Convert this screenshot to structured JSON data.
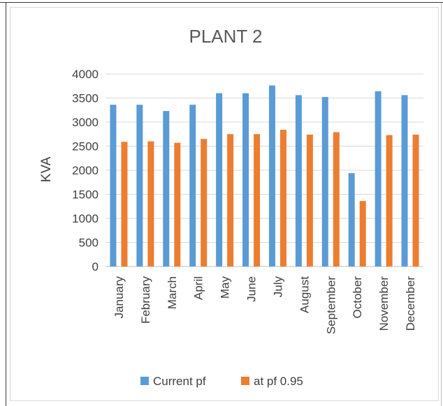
{
  "chart_data": {
    "type": "bar",
    "title": "PLANT 2",
    "xlabel": "",
    "ylabel": "KVA",
    "ylim": [
      0,
      4000
    ],
    "yticks": [
      0,
      500,
      1000,
      1500,
      2000,
      2500,
      3000,
      3500,
      4000
    ],
    "grid": true,
    "legend_position": "bottom",
    "categories": [
      "January",
      "February",
      "March",
      "April",
      "May",
      "June",
      "July",
      "August",
      "September",
      "October",
      "November",
      "December"
    ],
    "series": [
      {
        "name": "Current pf",
        "color": "#5b9bd5",
        "values": [
          3360,
          3360,
          3230,
          3360,
          3600,
          3600,
          3760,
          3560,
          3520,
          1940,
          3640,
          3560
        ]
      },
      {
        "name": "at pf 0.95",
        "color": "#ed7d31",
        "values": [
          2590,
          2600,
          2570,
          2650,
          2750,
          2750,
          2840,
          2740,
          2790,
          1360,
          2730,
          2740
        ]
      }
    ]
  }
}
